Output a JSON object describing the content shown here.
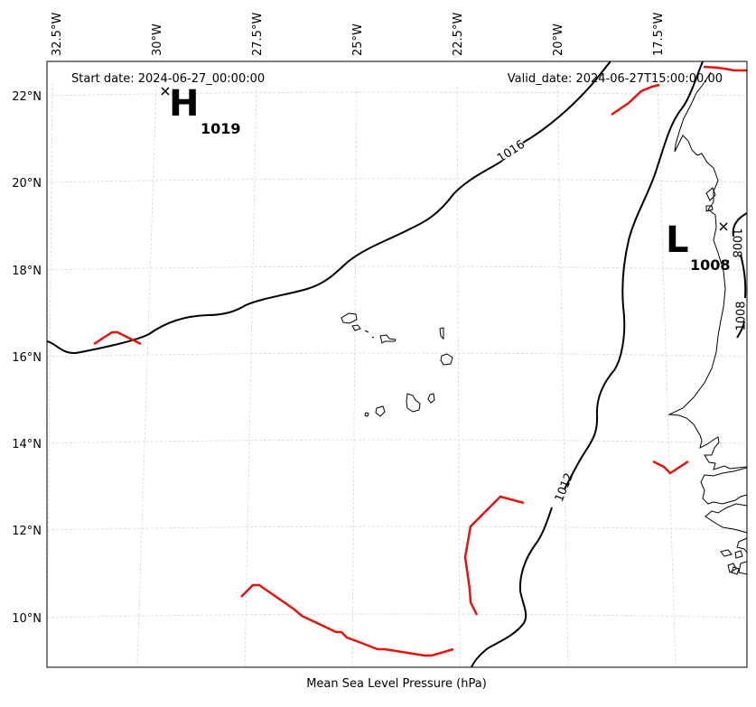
{
  "header": {
    "start_date": "Start date: 2024-06-27_00:00:00",
    "valid_date": "Valid_date: 2024-06-27T15:00:00.00"
  },
  "caption": "Mean Sea Level Pressure (hPa)",
  "lon_ticks": [
    "32.5°W",
    "30°W",
    "27.5°W",
    "25°W",
    "22.5°W",
    "20°W",
    "17.5°W"
  ],
  "lat_ticks": [
    "22°N",
    "20°N",
    "18°N",
    "16°N",
    "14°N",
    "12°N",
    "10°N"
  ],
  "pressure_centers": [
    {
      "type": "H",
      "value": "1019"
    },
    {
      "type": "L",
      "value": "1008"
    }
  ],
  "contour_labels": [
    "1016",
    "1012",
    "1008",
    "1008"
  ],
  "colors": {
    "isobar": "#000000",
    "front": "#e8120c",
    "grid": "#cccccc",
    "coast": "#000000"
  }
}
